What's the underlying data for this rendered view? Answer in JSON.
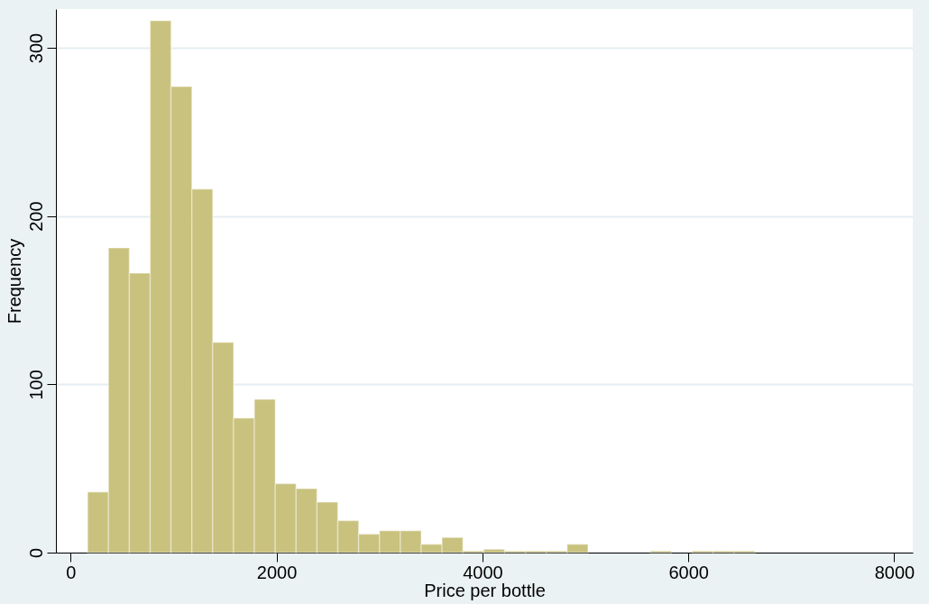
{
  "chart_data": {
    "type": "histogram",
    "xlabel": "Price per bottle",
    "ylabel": "Frequency",
    "bins": [
      165,
      367.5,
      570,
      772.5,
      975,
      1177.5,
      1380,
      1582.5,
      1785,
      1987.5,
      2190,
      2392.5,
      2595,
      2797.5,
      3000,
      3202.5,
      3405,
      3607.5,
      3810,
      4012.5,
      4215,
      4417.5,
      4620,
      4822.5,
      5025,
      5227.5,
      5430,
      5632.5,
      5835,
      6037.5,
      6240,
      6442.5,
      6645
    ],
    "values": [
      36,
      181,
      166,
      316,
      277,
      216,
      125,
      80,
      91,
      41,
      38,
      30,
      19,
      11,
      13,
      13,
      5,
      9,
      1,
      2,
      1,
      1,
      1,
      5,
      0,
      0,
      0,
      1,
      0,
      1,
      1,
      1
    ],
    "color": "#c9c27e",
    "xlim": [
      -143,
      8180
    ],
    "xticks": [
      0,
      2000,
      4000,
      6000,
      8000
    ],
    "ylim": [
      0,
      323
    ],
    "yticks": [
      0,
      100,
      200,
      300
    ],
    "grid": "y"
  }
}
